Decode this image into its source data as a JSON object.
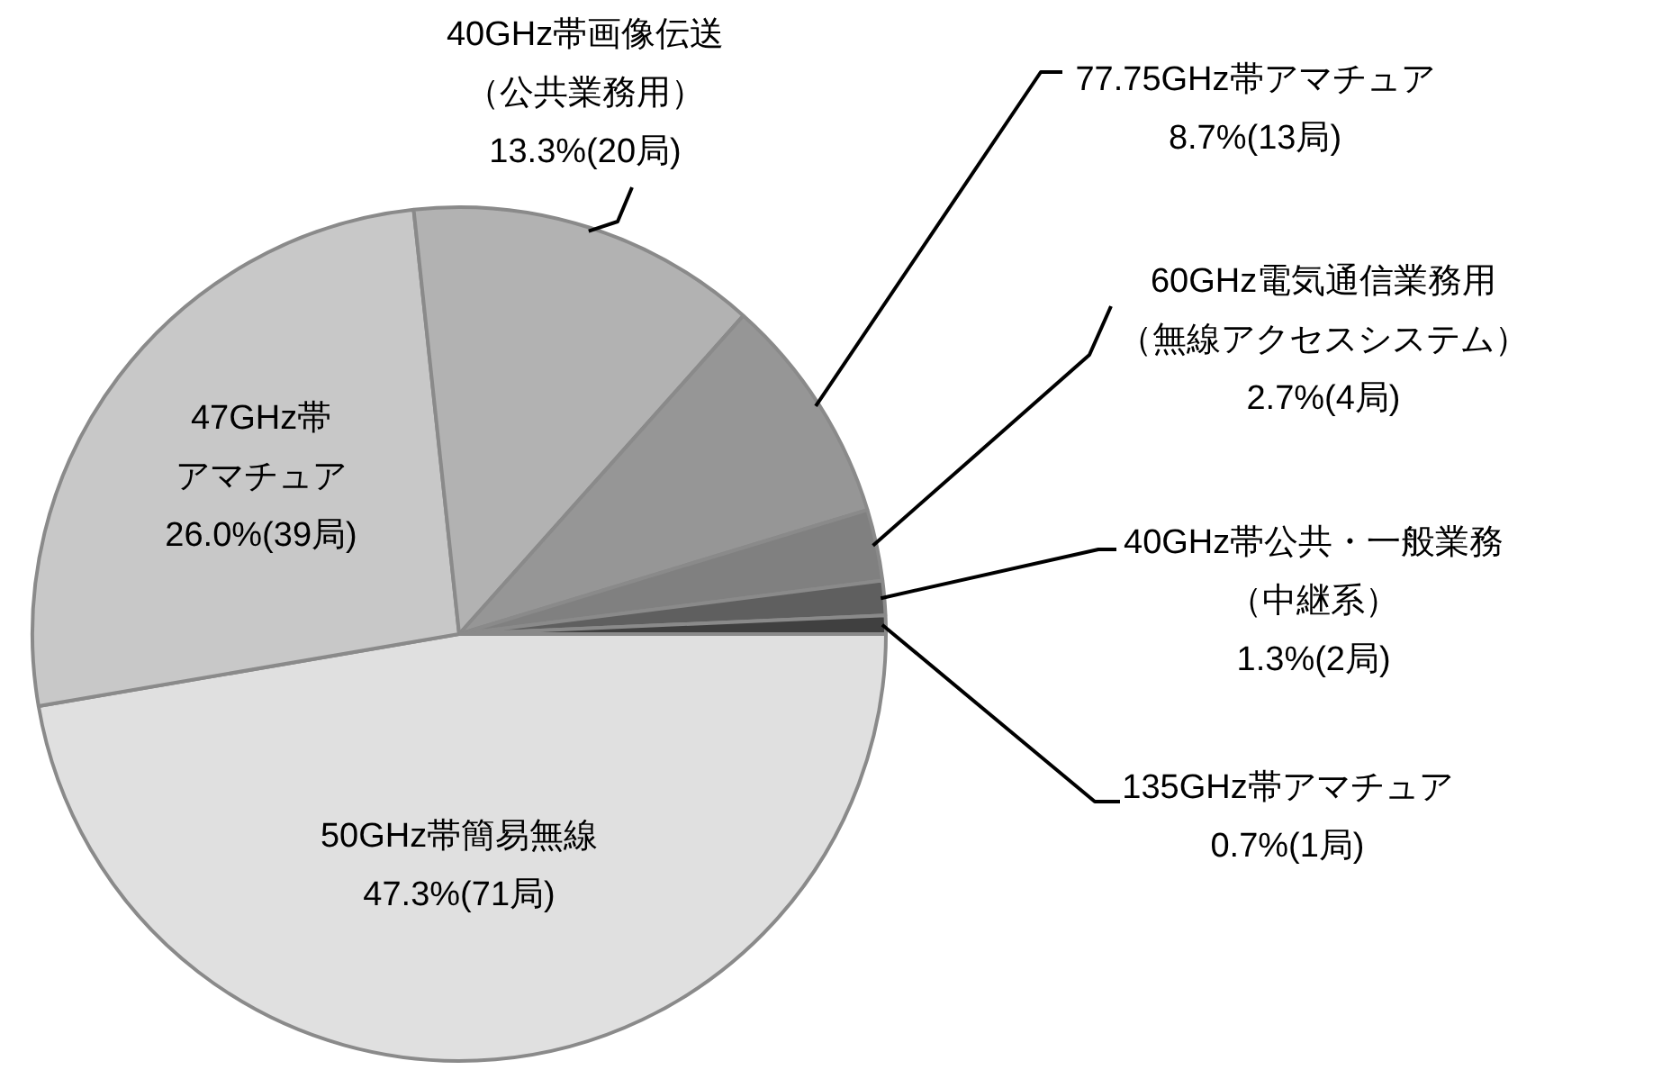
{
  "chart_data": {
    "type": "pie",
    "categories": [
      "50GHz帯簡易無線",
      "47GHz帯アマチュア",
      "40GHz帯画像伝送（公共業務用）",
      "77.75GHz帯アマチュア",
      "60GHz電気通信業務用（無線アクセスシステム）",
      "40GHz帯公共・一般業務（中継系）",
      "135GHz帯アマチュア"
    ],
    "values": [
      47.3,
      26.0,
      13.3,
      8.7,
      2.7,
      1.3,
      0.7
    ],
    "value_labels": [
      "47.3%(71局)",
      "26.0%(39局)",
      "13.3%(20局)",
      "8.7%(13局)",
      "2.7%(4局)",
      "1.3%(2局)",
      "0.7%(1局)"
    ],
    "colors": [
      "#e0e0e0",
      "#c8c8c8",
      "#b2b2b2",
      "#969696",
      "#808080",
      "#5f5f5f",
      "#404040"
    ]
  }
}
